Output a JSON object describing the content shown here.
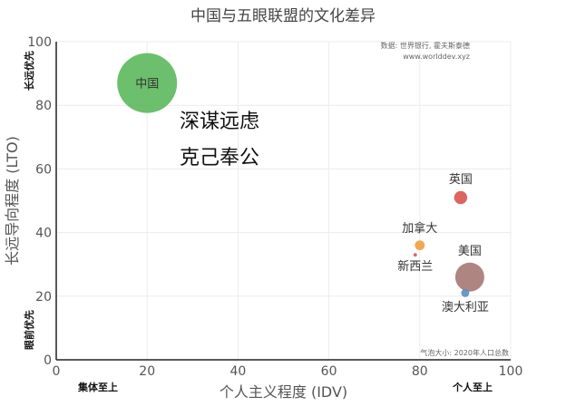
{
  "chart_data": {
    "type": "scatter",
    "title": "中国与五眼联盟的文化差异",
    "xlabel": "个人主义程度 (IDV)",
    "ylabel": "长远导向程度 (LTO)",
    "xlim": [
      0,
      100
    ],
    "ylim": [
      0,
      100
    ],
    "x_ticks": [
      "0",
      "20",
      "40",
      "60",
      "80",
      "100"
    ],
    "y_ticks": [
      "0",
      "20",
      "40",
      "60",
      "80",
      "100"
    ],
    "grid": true,
    "x_low_label": "集体至上",
    "x_high_label": "个人至上",
    "y_high_label": "长远优先",
    "y_low_label": "眼前优先",
    "source_lines": [
      "数据: 世界银行, 霍夫斯泰德",
      "www.worlddev.xyz"
    ],
    "size_note": "气泡大小: 2020年人口总数",
    "annotation_lines": [
      "深谋远虑",
      "克己奉公"
    ],
    "points": [
      {
        "label": "中国",
        "x": 20,
        "y": 87,
        "population_billion": 1.41,
        "color": "#5cb85c",
        "opacity": 0.9,
        "label_pos": "center"
      },
      {
        "label": "英国",
        "x": 89,
        "y": 51,
        "population_billion": 0.067,
        "color": "#d9534f",
        "opacity": 0.9,
        "label_pos": "above"
      },
      {
        "label": "加拿大",
        "x": 80,
        "y": 36,
        "population_billion": 0.038,
        "color": "#f0a040",
        "opacity": 0.9,
        "label_pos": "above"
      },
      {
        "label": "新西兰",
        "x": 79,
        "y": 33,
        "population_billion": 0.005,
        "color": "#e05070",
        "opacity": 0.9,
        "label_pos": "below"
      },
      {
        "label": "美国",
        "x": 91,
        "y": 26,
        "population_billion": 0.331,
        "color": "#a0706a",
        "opacity": 0.85,
        "label_pos": "above"
      },
      {
        "label": "澳大利亚",
        "x": 90,
        "y": 21,
        "population_billion": 0.026,
        "color": "#5a8fc0",
        "opacity": 0.9,
        "label_pos": "below"
      }
    ]
  }
}
